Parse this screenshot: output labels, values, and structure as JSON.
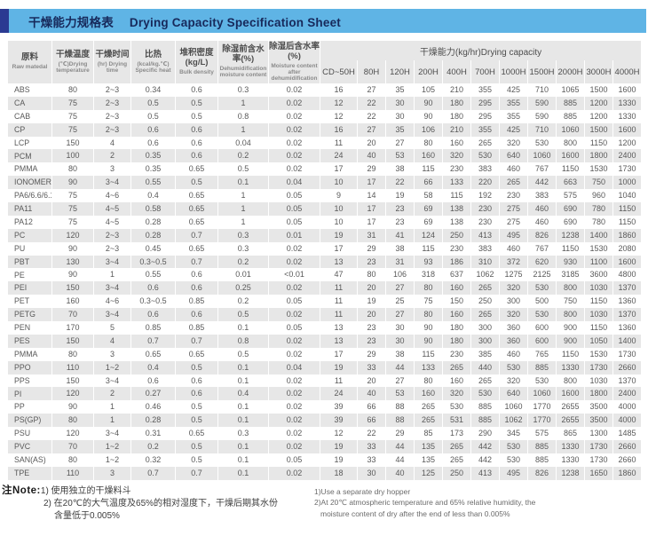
{
  "title": {
    "zh": "干燥能力规格表",
    "en": "Drying Capacity Specification Sheet"
  },
  "colors": {
    "title_bar_bg": "#5fb4e5",
    "title_accent": "#2b3a92",
    "title_text": "#17295b",
    "header_bg": "#e7e7e7",
    "row_alt": "#e7e7e7"
  },
  "table": {
    "group_header": "干燥能力(kg/hr)Drying capacity",
    "columns": [
      {
        "key": "material",
        "zh": "原料",
        "en": "Raw matedal"
      },
      {
        "key": "temp",
        "zh": "干燥温度",
        "en": "(℃)Drying temperature"
      },
      {
        "key": "time",
        "zh": "干燥时间",
        "en": "(hr) Drying time"
      },
      {
        "key": "specific_heat",
        "zh": "比热",
        "en": "(kcal/kg.℃) Specific heat"
      },
      {
        "key": "bulk_density",
        "zh": "堆积密度(kg/L)",
        "en": "Bulk density"
      },
      {
        "key": "moisture_before",
        "zh": "除湿前含水率(%)",
        "en": "Dehumidification moisture content"
      },
      {
        "key": "moisture_after",
        "zh": "除湿后含水率(%)",
        "en": "Moisture content after dehumidification"
      }
    ],
    "capacity_columns": [
      "CD~50H",
      "80H",
      "120H",
      "200H",
      "400H",
      "700H",
      "1000H",
      "1500H",
      "2000H",
      "3000H",
      "4000H"
    ],
    "rows": [
      {
        "material": "ABS",
        "temp": "80",
        "time": "2~3",
        "specific_heat": "0.34",
        "bulk_density": "0.6",
        "moisture_before": "0.3",
        "moisture_after": "0.02",
        "capacities": [
          16,
          27,
          35,
          105,
          210,
          355,
          425,
          710,
          1065,
          1500,
          1600
        ]
      },
      {
        "material": "CA",
        "temp": "75",
        "time": "2~3",
        "specific_heat": "0.5",
        "bulk_density": "0.5",
        "moisture_before": "1",
        "moisture_after": "0.02",
        "capacities": [
          12,
          22,
          30,
          90,
          180,
          295,
          355,
          590,
          885,
          1200,
          1330
        ]
      },
      {
        "material": "CAB",
        "temp": "75",
        "time": "2~3",
        "specific_heat": "0.5",
        "bulk_density": "0.5",
        "moisture_before": "0.8",
        "moisture_after": "0.02",
        "capacities": [
          12,
          22,
          30,
          90,
          180,
          295,
          355,
          590,
          885,
          1200,
          1330
        ]
      },
      {
        "material": "CP",
        "temp": "75",
        "time": "2~3",
        "specific_heat": "0.6",
        "bulk_density": "0.6",
        "moisture_before": "1",
        "moisture_after": "0.02",
        "capacities": [
          16,
          27,
          35,
          106,
          210,
          355,
          425,
          710,
          1060,
          1500,
          1600
        ]
      },
      {
        "material": "LCP",
        "temp": "150",
        "time": "4",
        "specific_heat": "0.6",
        "bulk_density": "0.6",
        "moisture_before": "0.04",
        "moisture_after": "0.02",
        "capacities": [
          11,
          20,
          27,
          80,
          160,
          265,
          320,
          530,
          800,
          1150,
          1200
        ]
      },
      {
        "material": "PCM",
        "temp": "100",
        "time": "2",
        "specific_heat": "0.35",
        "bulk_density": "0.6",
        "moisture_before": "0.2",
        "moisture_after": "0.02",
        "capacities": [
          24,
          40,
          53,
          160,
          320,
          530,
          640,
          1060,
          1600,
          1800,
          2400
        ]
      },
      {
        "material": "PMMA",
        "temp": "80",
        "time": "3",
        "specific_heat": "0.35",
        "bulk_density": "0.65",
        "moisture_before": "0.5",
        "moisture_after": "0.02",
        "capacities": [
          17,
          29,
          38,
          115,
          230,
          383,
          460,
          767,
          1150,
          1530,
          1730
        ]
      },
      {
        "material": "IONOMER",
        "temp": "90",
        "time": "3~4",
        "specific_heat": "0.55",
        "bulk_density": "0.5",
        "moisture_before": "0.1",
        "moisture_after": "0.04",
        "capacities": [
          10,
          17,
          22,
          66,
          133,
          220,
          265,
          442,
          663,
          750,
          1000
        ]
      },
      {
        "material": "PA6/6.6/6.10",
        "temp": "75",
        "time": "4~6",
        "specific_heat": "0.4",
        "bulk_density": "0.65",
        "moisture_before": "1",
        "moisture_after": "0.05",
        "capacities": [
          9,
          14,
          19,
          58,
          115,
          192,
          230,
          383,
          575,
          960,
          1040
        ]
      },
      {
        "material": "PA11",
        "temp": "75",
        "time": "4~5",
        "specific_heat": "0.58",
        "bulk_density": "0.65",
        "moisture_before": "1",
        "moisture_after": "0.05",
        "capacities": [
          10,
          17,
          23,
          69,
          138,
          230,
          275,
          460,
          690,
          780,
          1150
        ]
      },
      {
        "material": "PA12",
        "temp": "75",
        "time": "4~5",
        "specific_heat": "0.28",
        "bulk_density": "0.65",
        "moisture_before": "1",
        "moisture_after": "0.05",
        "capacities": [
          10,
          17,
          23,
          69,
          138,
          230,
          275,
          460,
          690,
          780,
          1150
        ]
      },
      {
        "material": "PC",
        "temp": "120",
        "time": "2~3",
        "specific_heat": "0.28",
        "bulk_density": "0.7",
        "moisture_before": "0.3",
        "moisture_after": "0.01",
        "capacities": [
          19,
          31,
          41,
          124,
          250,
          413,
          495,
          826,
          1238,
          1400,
          1860
        ]
      },
      {
        "material": "PU",
        "temp": "90",
        "time": "2~3",
        "specific_heat": "0.45",
        "bulk_density": "0.65",
        "moisture_before": "0.3",
        "moisture_after": "0.02",
        "capacities": [
          17,
          29,
          38,
          115,
          230,
          383,
          460,
          767,
          1150,
          1530,
          2080
        ]
      },
      {
        "material": "PBT",
        "temp": "130",
        "time": "3~4",
        "specific_heat": "0.3~0.5",
        "bulk_density": "0.7",
        "moisture_before": "0.2",
        "moisture_after": "0.02",
        "capacities": [
          13,
          23,
          31,
          93,
          186,
          310,
          372,
          620,
          930,
          1100,
          1600
        ]
      },
      {
        "material": "PE",
        "temp": "90",
        "time": "1",
        "specific_heat": "0.55",
        "bulk_density": "0.6",
        "moisture_before": "0.01",
        "moisture_after": "<0.01",
        "capacities": [
          47,
          80,
          106,
          318,
          637,
          1062,
          1275,
          2125,
          3185,
          3600,
          4800
        ]
      },
      {
        "material": "PEI",
        "temp": "150",
        "time": "3~4",
        "specific_heat": "0.6",
        "bulk_density": "0.6",
        "moisture_before": "0.25",
        "moisture_after": "0.02",
        "capacities": [
          11,
          20,
          27,
          80,
          160,
          265,
          320,
          530,
          800,
          1030,
          1370
        ]
      },
      {
        "material": "PET",
        "temp": "160",
        "time": "4~6",
        "specific_heat": "0.3~0.5",
        "bulk_density": "0.85",
        "moisture_before": "0.2",
        "moisture_after": "0.05",
        "capacities": [
          11,
          19,
          25,
          75,
          150,
          250,
          300,
          500,
          750,
          1150,
          1360
        ]
      },
      {
        "material": "PETG",
        "temp": "70",
        "time": "3~4",
        "specific_heat": "0.6",
        "bulk_density": "0.6",
        "moisture_before": "0.5",
        "moisture_after": "0.02",
        "capacities": [
          11,
          20,
          27,
          80,
          160,
          265,
          320,
          530,
          800,
          1030,
          1370
        ]
      },
      {
        "material": "PEN",
        "temp": "170",
        "time": "5",
        "specific_heat": "0.85",
        "bulk_density": "0.85",
        "moisture_before": "0.1",
        "moisture_after": "0.05",
        "capacities": [
          13,
          23,
          30,
          90,
          180,
          300,
          360,
          600,
          900,
          1150,
          1360
        ]
      },
      {
        "material": "PES",
        "temp": "150",
        "time": "4",
        "specific_heat": "0.7",
        "bulk_density": "0.7",
        "moisture_before": "0.8",
        "moisture_after": "0.02",
        "capacities": [
          13,
          23,
          30,
          90,
          180,
          300,
          360,
          600,
          900,
          1050,
          1400
        ]
      },
      {
        "material": "PMMA",
        "temp": "80",
        "time": "3",
        "specific_heat": "0.65",
        "bulk_density": "0.65",
        "moisture_before": "0.5",
        "moisture_after": "0.02",
        "capacities": [
          17,
          29,
          38,
          115,
          230,
          385,
          460,
          765,
          1150,
          1530,
          1730
        ]
      },
      {
        "material": "PPO",
        "temp": "110",
        "time": "1~2",
        "specific_heat": "0.4",
        "bulk_density": "0.5",
        "moisture_before": "0.1",
        "moisture_after": "0.04",
        "capacities": [
          19,
          33,
          44,
          133,
          265,
          440,
          530,
          885,
          1330,
          1730,
          2660
        ]
      },
      {
        "material": "PPS",
        "temp": "150",
        "time": "3~4",
        "specific_heat": "0.6",
        "bulk_density": "0.6",
        "moisture_before": "0.1",
        "moisture_after": "0.02",
        "capacities": [
          11,
          20,
          27,
          80,
          160,
          265,
          320,
          530,
          800,
          1030,
          1370
        ]
      },
      {
        "material": "PI",
        "temp": "120",
        "time": "2",
        "specific_heat": "0.27",
        "bulk_density": "0.6",
        "moisture_before": "0.4",
        "moisture_after": "0.02",
        "capacities": [
          24,
          40,
          53,
          160,
          320,
          530,
          640,
          1060,
          1600,
          1800,
          2400
        ]
      },
      {
        "material": "PP",
        "temp": "90",
        "time": "1",
        "specific_heat": "0.46",
        "bulk_density": "0.5",
        "moisture_before": "0.1",
        "moisture_after": "0.02",
        "capacities": [
          39,
          66,
          88,
          265,
          530,
          885,
          1060,
          1770,
          2655,
          3500,
          4000
        ]
      },
      {
        "material": "PS(GP)",
        "temp": "80",
        "time": "1",
        "specific_heat": "0.28",
        "bulk_density": "0.5",
        "moisture_before": "0.1",
        "moisture_after": "0.02",
        "capacities": [
          39,
          66,
          88,
          265,
          531,
          885,
          1062,
          1770,
          2655,
          3500,
          4000
        ]
      },
      {
        "material": "PSU",
        "temp": "120",
        "time": "3~4",
        "specific_heat": "0.31",
        "bulk_density": "0.65",
        "moisture_before": "0.3",
        "moisture_after": "0.02",
        "capacities": [
          12,
          22,
          29,
          85,
          173,
          290,
          345,
          575,
          865,
          1300,
          1485
        ]
      },
      {
        "material": "PVC",
        "temp": "70",
        "time": "1~2",
        "specific_heat": "0.2",
        "bulk_density": "0.5",
        "moisture_before": "0.1",
        "moisture_after": "0.02",
        "capacities": [
          19,
          33,
          44,
          135,
          265,
          442,
          530,
          885,
          1330,
          1730,
          2660
        ]
      },
      {
        "material": "SAN(AS)",
        "temp": "80",
        "time": "1~2",
        "specific_heat": "0.32",
        "bulk_density": "0.5",
        "moisture_before": "0.1",
        "moisture_after": "0.05",
        "capacities": [
          19,
          33,
          44,
          135,
          265,
          442,
          530,
          885,
          1330,
          1730,
          2660
        ]
      },
      {
        "material": "TPE",
        "temp": "110",
        "time": "3",
        "specific_heat": "0.7",
        "bulk_density": "0.7",
        "moisture_before": "0.1",
        "moisture_after": "0.02",
        "capacities": [
          18,
          30,
          40,
          125,
          250,
          413,
          495,
          826,
          1238,
          1650,
          1860
        ]
      }
    ]
  },
  "notes": {
    "zh": {
      "label": "注Note:",
      "line1": "1) 使用独立的干燥料斗",
      "line2": "2) 在20℃的大气温度及65%的相对湿度下，干燥后期其水份",
      "line3": "含量低于0.005%"
    },
    "en": {
      "line1": "1)Use a separate dry hopper",
      "line2": "2)At 20℃ atmospheric temperature and 65% relative humidity, the",
      "line3": "moisture content of dry after the end of less than 0.005%"
    }
  }
}
